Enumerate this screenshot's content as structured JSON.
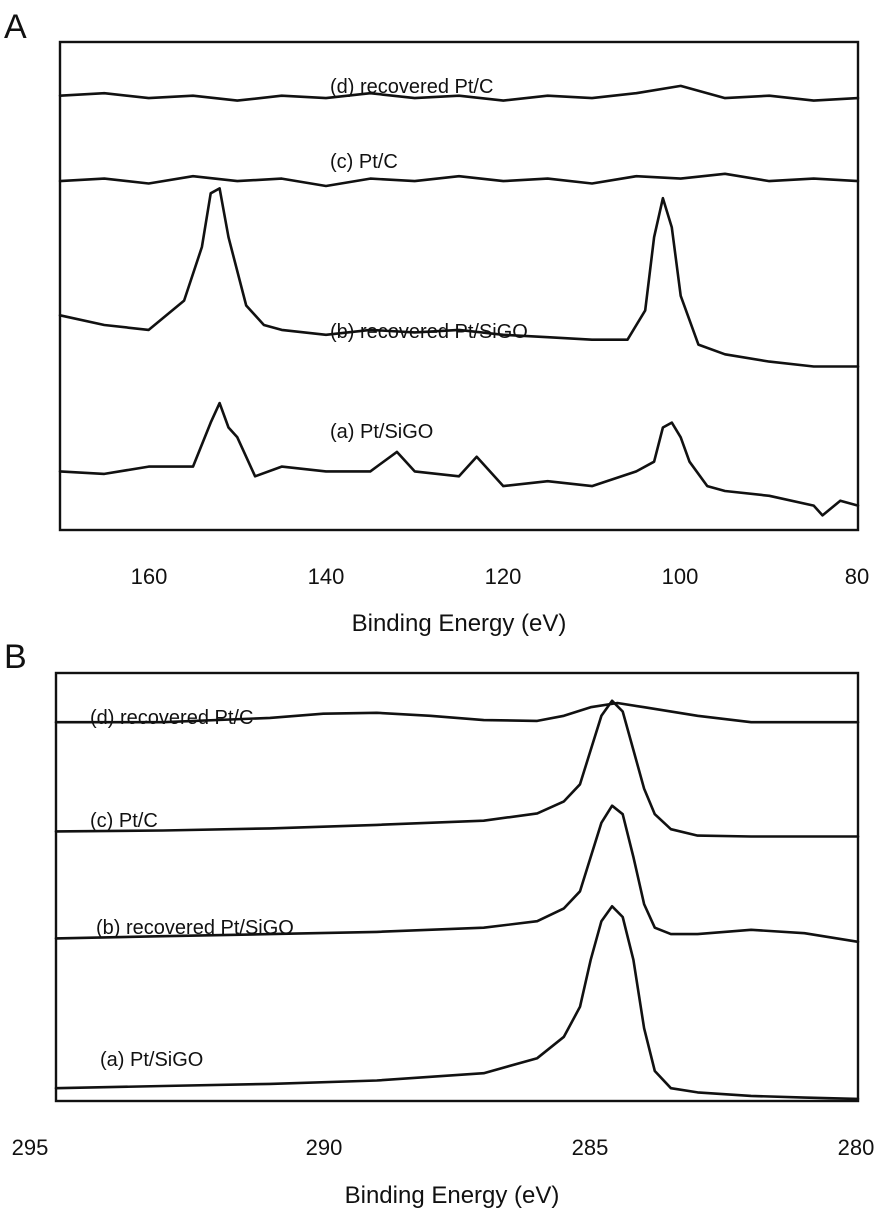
{
  "chart_data": [
    {
      "type": "line",
      "panel": "A",
      "xlabel": "Binding Energy (eV)",
      "ylabel": "",
      "xlim": [
        170,
        80
      ],
      "xticks": [
        160,
        140,
        120,
        100,
        80
      ],
      "ylim": [
        0,
        1
      ],
      "grid": false,
      "series": [
        {
          "name": "(d) recovered Pt/C",
          "x": [
            170,
            165,
            160,
            155,
            150,
            145,
            140,
            135,
            130,
            125,
            120,
            115,
            110,
            105,
            100,
            95,
            90,
            85,
            80
          ],
          "y": [
            0.89,
            0.895,
            0.885,
            0.89,
            0.88,
            0.89,
            0.885,
            0.895,
            0.885,
            0.89,
            0.88,
            0.89,
            0.885,
            0.895,
            0.91,
            0.885,
            0.89,
            0.88,
            0.885
          ]
        },
        {
          "name": "(c) Pt/C",
          "x": [
            170,
            165,
            160,
            155,
            150,
            145,
            140,
            135,
            130,
            125,
            120,
            115,
            110,
            105,
            100,
            95,
            90,
            85,
            80
          ],
          "y": [
            0.715,
            0.72,
            0.71,
            0.725,
            0.715,
            0.72,
            0.705,
            0.72,
            0.715,
            0.725,
            0.715,
            0.72,
            0.71,
            0.725,
            0.72,
            0.73,
            0.715,
            0.72,
            0.715
          ]
        },
        {
          "name": "(b) recovered Pt/SiGO",
          "x": [
            170,
            165,
            160,
            156,
            154,
            153,
            152,
            151,
            149,
            147,
            145,
            140,
            135,
            130,
            125,
            120,
            115,
            110,
            106,
            104,
            103,
            102,
            101,
            100,
            98,
            95,
            90,
            85,
            80
          ],
          "y": [
            0.44,
            0.42,
            0.41,
            0.47,
            0.58,
            0.69,
            0.7,
            0.6,
            0.46,
            0.42,
            0.41,
            0.4,
            0.41,
            0.405,
            0.41,
            0.4,
            0.395,
            0.39,
            0.39,
            0.45,
            0.6,
            0.68,
            0.62,
            0.48,
            0.38,
            0.36,
            0.345,
            0.335,
            0.335
          ]
        },
        {
          "name": "(a) Pt/SiGO",
          "x": [
            170,
            165,
            160,
            155,
            153,
            152,
            151,
            150,
            148,
            145,
            140,
            135,
            132,
            130,
            125,
            123,
            120,
            115,
            110,
            105,
            103,
            102,
            101,
            100,
            99,
            97,
            95,
            90,
            85,
            84,
            82,
            80
          ],
          "y": [
            0.12,
            0.115,
            0.13,
            0.13,
            0.22,
            0.26,
            0.21,
            0.19,
            0.11,
            0.13,
            0.12,
            0.12,
            0.16,
            0.12,
            0.11,
            0.15,
            0.09,
            0.1,
            0.09,
            0.12,
            0.14,
            0.21,
            0.22,
            0.19,
            0.14,
            0.09,
            0.08,
            0.07,
            0.05,
            0.03,
            0.06,
            0.05
          ]
        }
      ]
    },
    {
      "type": "line",
      "panel": "B",
      "xlabel": "Binding Energy (eV)",
      "ylabel": "",
      "xlim": [
        295,
        280
      ],
      "xticks": [
        295,
        290,
        285,
        280
      ],
      "ylim": [
        0,
        1
      ],
      "grid": false,
      "series": [
        {
          "name": "(d) recovered Pt/C",
          "x": [
            295,
            293,
            291,
            290,
            289,
            288,
            287,
            286,
            285.5,
            285,
            284.5,
            284,
            283,
            282,
            281,
            280
          ],
          "y": [
            0.885,
            0.885,
            0.895,
            0.905,
            0.907,
            0.9,
            0.89,
            0.888,
            0.9,
            0.92,
            0.93,
            0.92,
            0.9,
            0.885,
            0.885,
            0.885
          ]
        },
        {
          "name": "(c) Pt/C",
          "x": [
            295,
            293,
            291,
            289,
            287,
            286,
            285.5,
            285.2,
            285,
            284.8,
            284.6,
            284.4,
            284.2,
            284,
            283.8,
            283.5,
            283,
            282,
            281,
            280
          ],
          "y": [
            0.63,
            0.632,
            0.637,
            0.645,
            0.655,
            0.672,
            0.7,
            0.74,
            0.82,
            0.9,
            0.935,
            0.91,
            0.82,
            0.73,
            0.67,
            0.635,
            0.62,
            0.618,
            0.618,
            0.618
          ]
        },
        {
          "name": "(b) recovered Pt/SiGO",
          "x": [
            295,
            293,
            291,
            289,
            287,
            286,
            285.5,
            285.2,
            285,
            284.8,
            284.6,
            284.4,
            284.2,
            284,
            283.8,
            283.5,
            283,
            282,
            281,
            280
          ],
          "y": [
            0.38,
            0.385,
            0.39,
            0.395,
            0.405,
            0.42,
            0.45,
            0.49,
            0.57,
            0.65,
            0.69,
            0.67,
            0.57,
            0.46,
            0.405,
            0.39,
            0.39,
            0.4,
            0.392,
            0.372
          ]
        },
        {
          "name": "(a) Pt/SiGO",
          "x": [
            295,
            293,
            291,
            289,
            287,
            286,
            285.5,
            285.2,
            285,
            284.8,
            284.6,
            284.4,
            284.2,
            284,
            283.8,
            283.5,
            283,
            282,
            281,
            280
          ],
          "y": [
            0.03,
            0.035,
            0.04,
            0.048,
            0.065,
            0.1,
            0.15,
            0.22,
            0.33,
            0.42,
            0.455,
            0.43,
            0.33,
            0.17,
            0.07,
            0.03,
            0.02,
            0.012,
            0.008,
            0.005
          ]
        }
      ]
    }
  ]
}
